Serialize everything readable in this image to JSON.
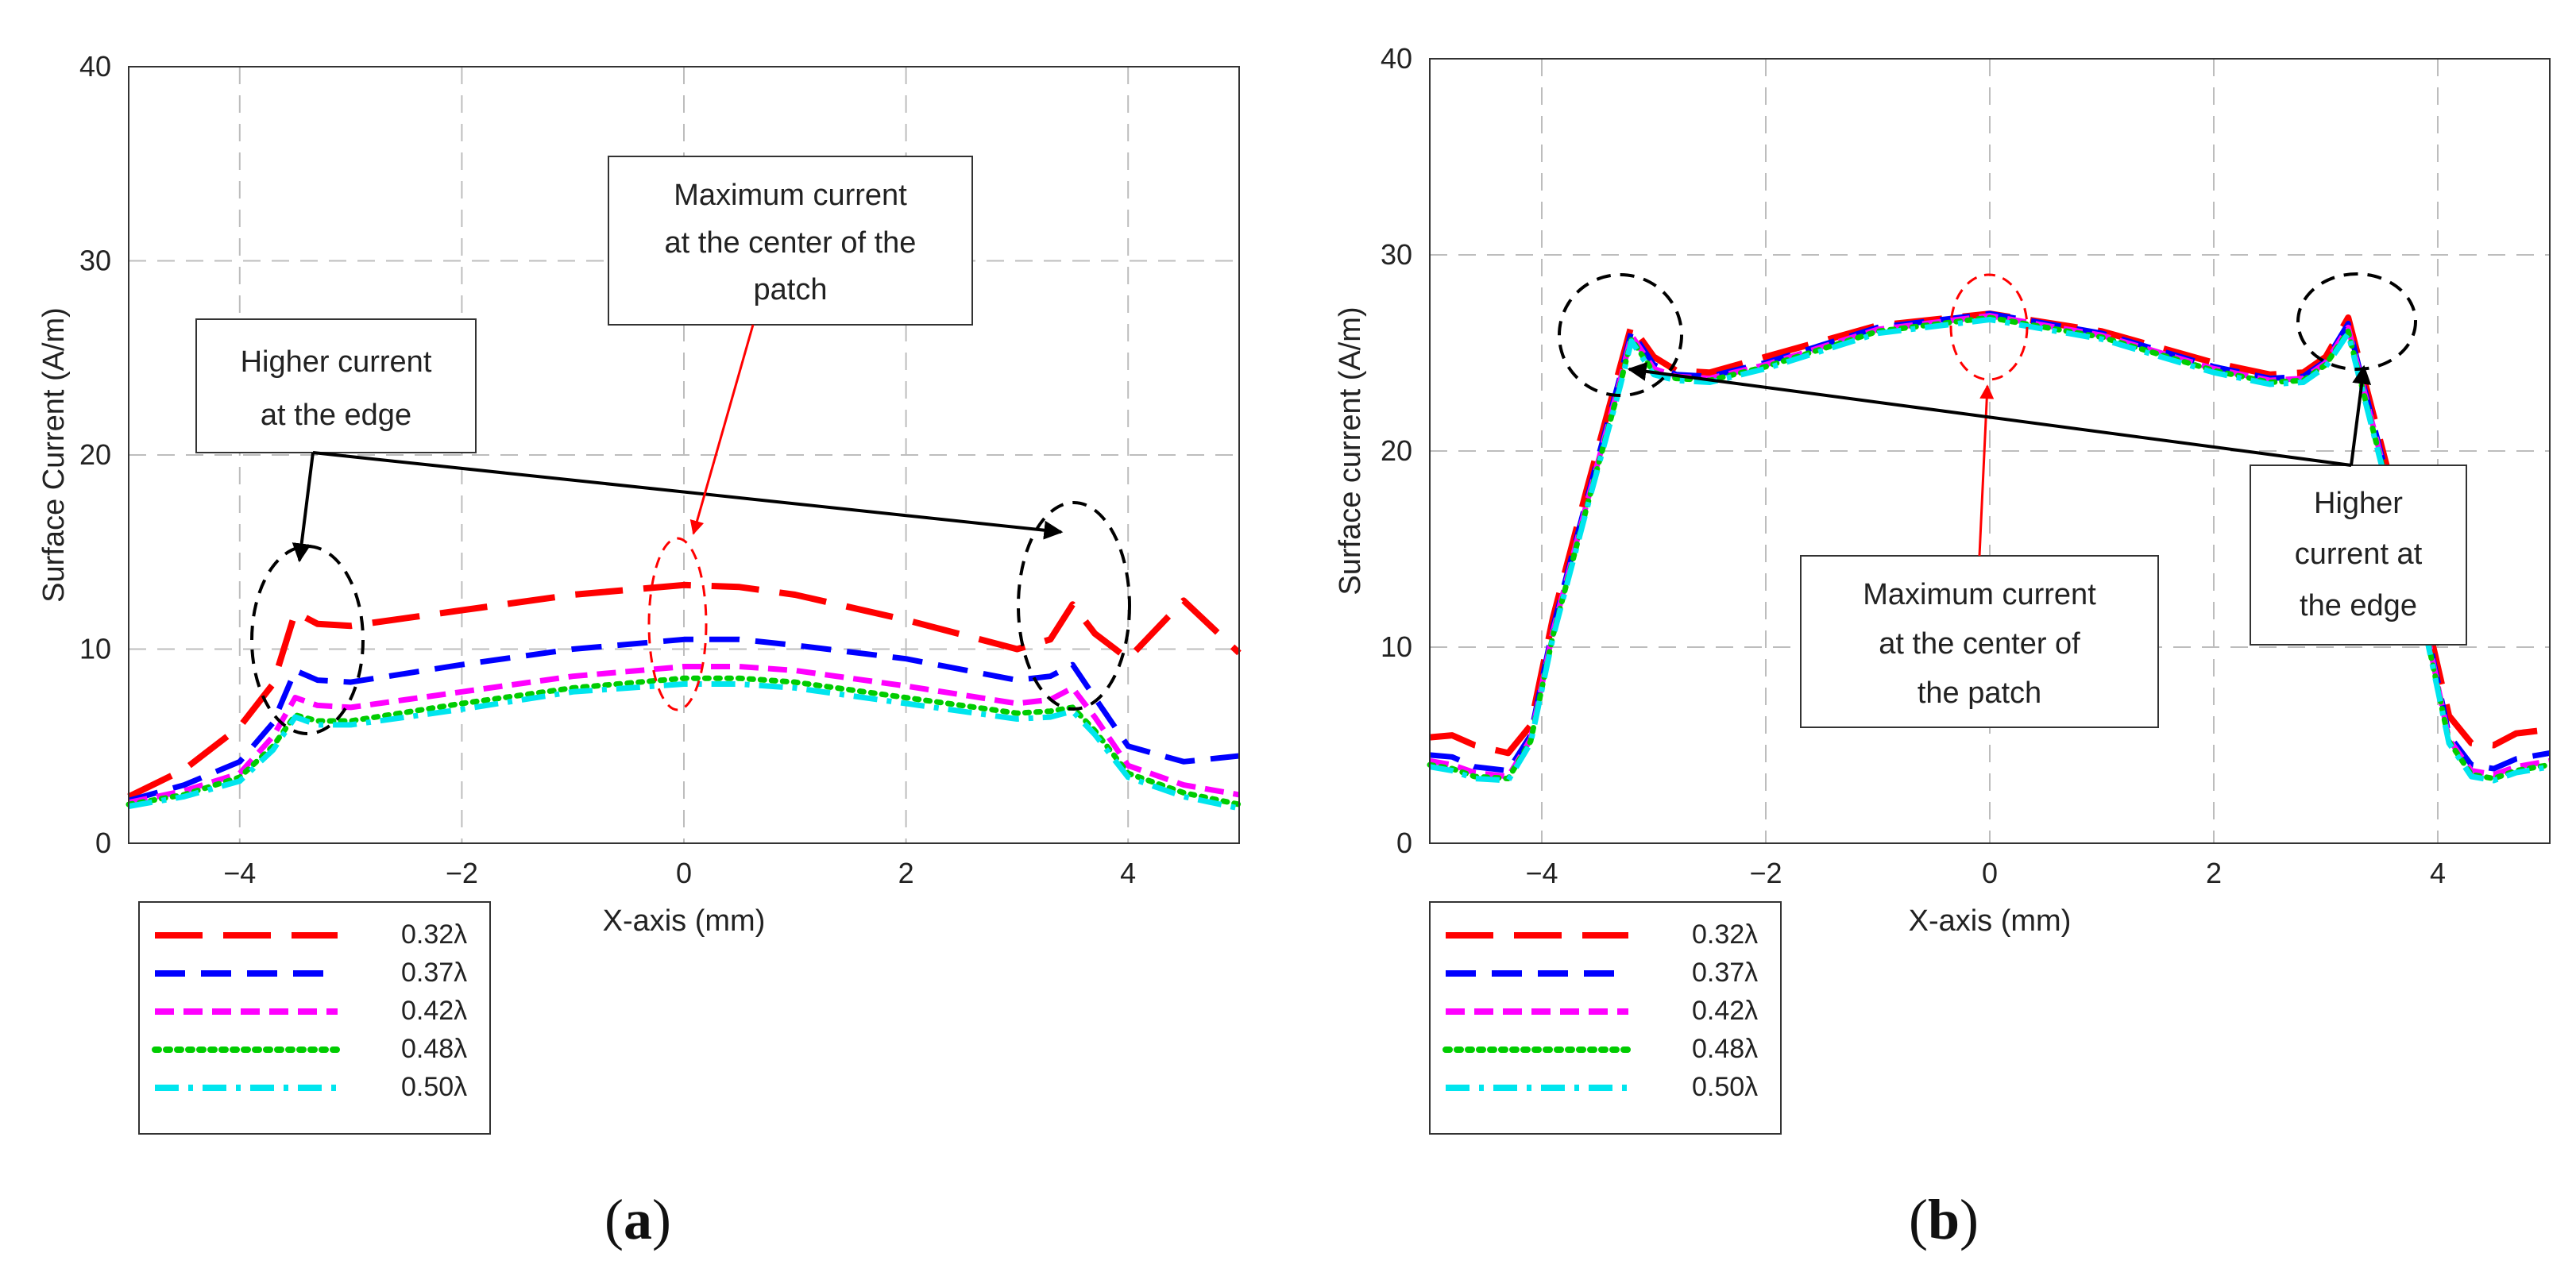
{
  "chart_data": [
    {
      "type": "line",
      "panel_label_open": "(",
      "panel_label_letter": "a",
      "panel_label_close": ")",
      "xlabel": "X-axis (mm)",
      "ylabel": "Surface Current (A/m)",
      "xlim": [
        -5,
        5
      ],
      "ylim": [
        0,
        40
      ],
      "xticks": [
        -4,
        -2,
        0,
        2,
        4
      ],
      "yticks": [
        0,
        10,
        20,
        30,
        40
      ],
      "grid": true,
      "legend_placement": "below-left",
      "annotations": [
        {
          "lines": [
            "Higher current",
            "at the edge"
          ]
        },
        {
          "lines": [
            "Maximum current",
            "at the center of the",
            "patch"
          ]
        }
      ],
      "series": [
        {
          "name": "0.32λ",
          "color": "#ff0000",
          "dash": "long-dash",
          "x": [
            -5,
            -4.5,
            -4,
            -3.7,
            -3.5,
            -3.3,
            -3,
            -2,
            -1,
            0,
            0.5,
            1,
            2,
            3,
            3.3,
            3.5,
            3.7,
            4,
            4.5,
            5
          ],
          "y": [
            2.4,
            3.8,
            6,
            8.2,
            11.9,
            11.3,
            11.2,
            12,
            12.8,
            13.3,
            13.2,
            12.8,
            11.5,
            10,
            10.5,
            12.3,
            10.8,
            9.5,
            12.5,
            9.8
          ]
        },
        {
          "name": "0.37λ",
          "color": "#0000ff",
          "dash": "dash",
          "x": [
            -5,
            -4.5,
            -4,
            -3.7,
            -3.5,
            -3.3,
            -3,
            -2,
            -1,
            0,
            0.5,
            1,
            2,
            3,
            3.3,
            3.5,
            3.7,
            4,
            4.5,
            5
          ],
          "y": [
            2.2,
            3,
            4.2,
            6.2,
            8.9,
            8.4,
            8.3,
            9.2,
            10,
            10.5,
            10.5,
            10.2,
            9.5,
            8.4,
            8.6,
            9.2,
            7.5,
            5,
            4.2,
            4.5
          ]
        },
        {
          "name": "0.42λ",
          "color": "#ff00ff",
          "dash": "dash-short",
          "x": [
            -5,
            -4.5,
            -4,
            -3.7,
            -3.5,
            -3.3,
            -3,
            -2,
            -1,
            0,
            0.5,
            1,
            2,
            3,
            3.3,
            3.5,
            3.7,
            4,
            4.5,
            5
          ],
          "y": [
            2.1,
            2.7,
            3.6,
            5.5,
            7.5,
            7.1,
            7,
            7.8,
            8.6,
            9.1,
            9.1,
            8.9,
            8.1,
            7.2,
            7.4,
            8,
            6.5,
            4,
            3,
            2.5
          ]
        },
        {
          "name": "0.48λ",
          "color": "#00cc00",
          "dash": "dot",
          "x": [
            -5,
            -4.5,
            -4,
            -3.7,
            -3.5,
            -3.3,
            -3,
            -2,
            -1,
            0,
            0.5,
            1,
            2,
            3,
            3.3,
            3.5,
            3.7,
            4,
            4.5,
            5
          ],
          "y": [
            2,
            2.5,
            3.4,
            5,
            6.6,
            6.3,
            6.3,
            7.2,
            8,
            8.5,
            8.5,
            8.3,
            7.5,
            6.7,
            6.8,
            7,
            5.8,
            3.6,
            2.6,
            2
          ]
        },
        {
          "name": "0.50λ",
          "color": "#00e5ee",
          "dash": "dash-dot",
          "x": [
            -5,
            -4.5,
            -4,
            -3.7,
            -3.5,
            -3.3,
            -3,
            -2,
            -1,
            0,
            0.5,
            1,
            2,
            3,
            3.3,
            3.5,
            3.7,
            4,
            4.5,
            5
          ],
          "y": [
            1.9,
            2.4,
            3.2,
            4.8,
            6.5,
            6.1,
            6.1,
            6.9,
            7.8,
            8.2,
            8.2,
            8,
            7.2,
            6.4,
            6.5,
            6.8,
            5.6,
            3.4,
            2.4,
            1.8
          ]
        }
      ]
    },
    {
      "type": "line",
      "panel_label_open": "(",
      "panel_label_letter": "b",
      "panel_label_close": ")",
      "xlabel": "X-axis (mm)",
      "ylabel": "Surface current (A/m)",
      "xlim": [
        -5,
        5
      ],
      "ylim": [
        0,
        40
      ],
      "xticks": [
        -4,
        -2,
        0,
        2,
        4
      ],
      "yticks": [
        0,
        10,
        20,
        30,
        40
      ],
      "grid": true,
      "legend_placement": "below-left",
      "annotations": [
        {
          "lines": [
            "Maximum current",
            "at the center of",
            "the patch"
          ]
        },
        {
          "lines": [
            "Higher",
            "current at",
            "the edge"
          ]
        }
      ],
      "series": [
        {
          "name": "0.32λ",
          "color": "#ff0000",
          "dash": "long-dash",
          "x": [
            -5,
            -4.8,
            -4.6,
            -4.3,
            -4.1,
            -3.9,
            -3.6,
            -3.3,
            -3.2,
            -3,
            -2.8,
            -2.5,
            -2,
            -1,
            0,
            1,
            2,
            2.5,
            2.8,
            3,
            3.2,
            3.3,
            3.6,
            3.9,
            4.1,
            4.3,
            4.5,
            4.7,
            5
          ],
          "y": [
            5.4,
            5.5,
            5,
            4.6,
            6,
            11.5,
            18,
            24.3,
            26.4,
            24.8,
            24.1,
            24,
            24.8,
            26.4,
            27,
            26.1,
            24.5,
            23.9,
            24,
            24.8,
            26.8,
            24.6,
            18,
            11.5,
            6.5,
            5.1,
            5,
            5.6,
            5.8
          ]
        },
        {
          "name": "0.37λ",
          "color": "#0000ff",
          "dash": "dash",
          "x": [
            -5,
            -4.8,
            -4.6,
            -4.3,
            -4.1,
            -3.9,
            -3.6,
            -3.3,
            -3.2,
            -3,
            -2.8,
            -2.5,
            -2,
            -1,
            0,
            1,
            2,
            2.5,
            2.8,
            3,
            3.2,
            3.3,
            3.6,
            3.9,
            4.1,
            4.3,
            4.5,
            4.7,
            5
          ],
          "y": [
            4.5,
            4.4,
            3.9,
            3.7,
            5.5,
            11,
            17.5,
            23.8,
            26.1,
            24.4,
            23.9,
            23.8,
            24.5,
            26.3,
            27,
            26,
            24.3,
            23.7,
            23.8,
            24.6,
            26.5,
            24.2,
            17.5,
            11,
            5.5,
            4,
            3.8,
            4.3,
            4.6
          ]
        },
        {
          "name": "0.42λ",
          "color": "#ff00ff",
          "dash": "dash-short",
          "x": [
            -5,
            -4.8,
            -4.6,
            -4.3,
            -4.1,
            -3.9,
            -3.6,
            -3.3,
            -3.2,
            -3,
            -2.8,
            -2.5,
            -2,
            -1,
            0,
            1,
            2,
            2.5,
            2.8,
            3,
            3.2,
            3.3,
            3.6,
            3.9,
            4.1,
            4.3,
            4.5,
            4.7,
            5
          ],
          "y": [
            4.2,
            4,
            3.6,
            3.4,
            5.3,
            10.8,
            17.3,
            23.6,
            25.9,
            24.2,
            23.8,
            23.7,
            24.4,
            26.2,
            26.9,
            25.9,
            24.2,
            23.6,
            23.7,
            24.5,
            26.3,
            24,
            17.3,
            10.8,
            5.3,
            3.7,
            3.5,
            3.9,
            4.2
          ]
        },
        {
          "name": "0.48λ",
          "color": "#00cc00",
          "dash": "dot",
          "x": [
            -5,
            -4.8,
            -4.6,
            -4.3,
            -4.1,
            -3.9,
            -3.6,
            -3.3,
            -3.2,
            -3,
            -2.8,
            -2.5,
            -2,
            -1,
            0,
            1,
            2,
            2.5,
            2.8,
            3,
            3.2,
            3.3,
            3.6,
            3.9,
            4.1,
            4.3,
            4.5,
            4.7,
            5
          ],
          "y": [
            4,
            3.8,
            3.4,
            3.3,
            5.2,
            10.6,
            17.1,
            23.4,
            25.7,
            24,
            23.7,
            23.6,
            24.3,
            26.1,
            26.8,
            25.8,
            24.1,
            23.5,
            23.6,
            24.4,
            26.1,
            23.8,
            17.1,
            10.6,
            5.2,
            3.5,
            3.3,
            3.7,
            4
          ]
        },
        {
          "name": "0.50λ",
          "color": "#00e5ee",
          "dash": "dash-dot",
          "x": [
            -5,
            -4.8,
            -4.6,
            -4.3,
            -4.1,
            -3.9,
            -3.6,
            -3.3,
            -3.2,
            -3,
            -2.8,
            -2.5,
            -2,
            -1,
            0,
            1,
            2,
            2.5,
            2.8,
            3,
            3.2,
            3.3,
            3.6,
            3.9,
            4.1,
            4.3,
            4.5,
            4.7,
            5
          ],
          "y": [
            3.9,
            3.7,
            3.3,
            3.2,
            5.1,
            10.5,
            17,
            23.3,
            25.6,
            23.9,
            23.6,
            23.5,
            24.2,
            26,
            26.7,
            25.7,
            24,
            23.4,
            23.5,
            24.3,
            26,
            23.7,
            17,
            10.5,
            5.1,
            3.4,
            3.2,
            3.6,
            3.9
          ]
        }
      ]
    }
  ]
}
